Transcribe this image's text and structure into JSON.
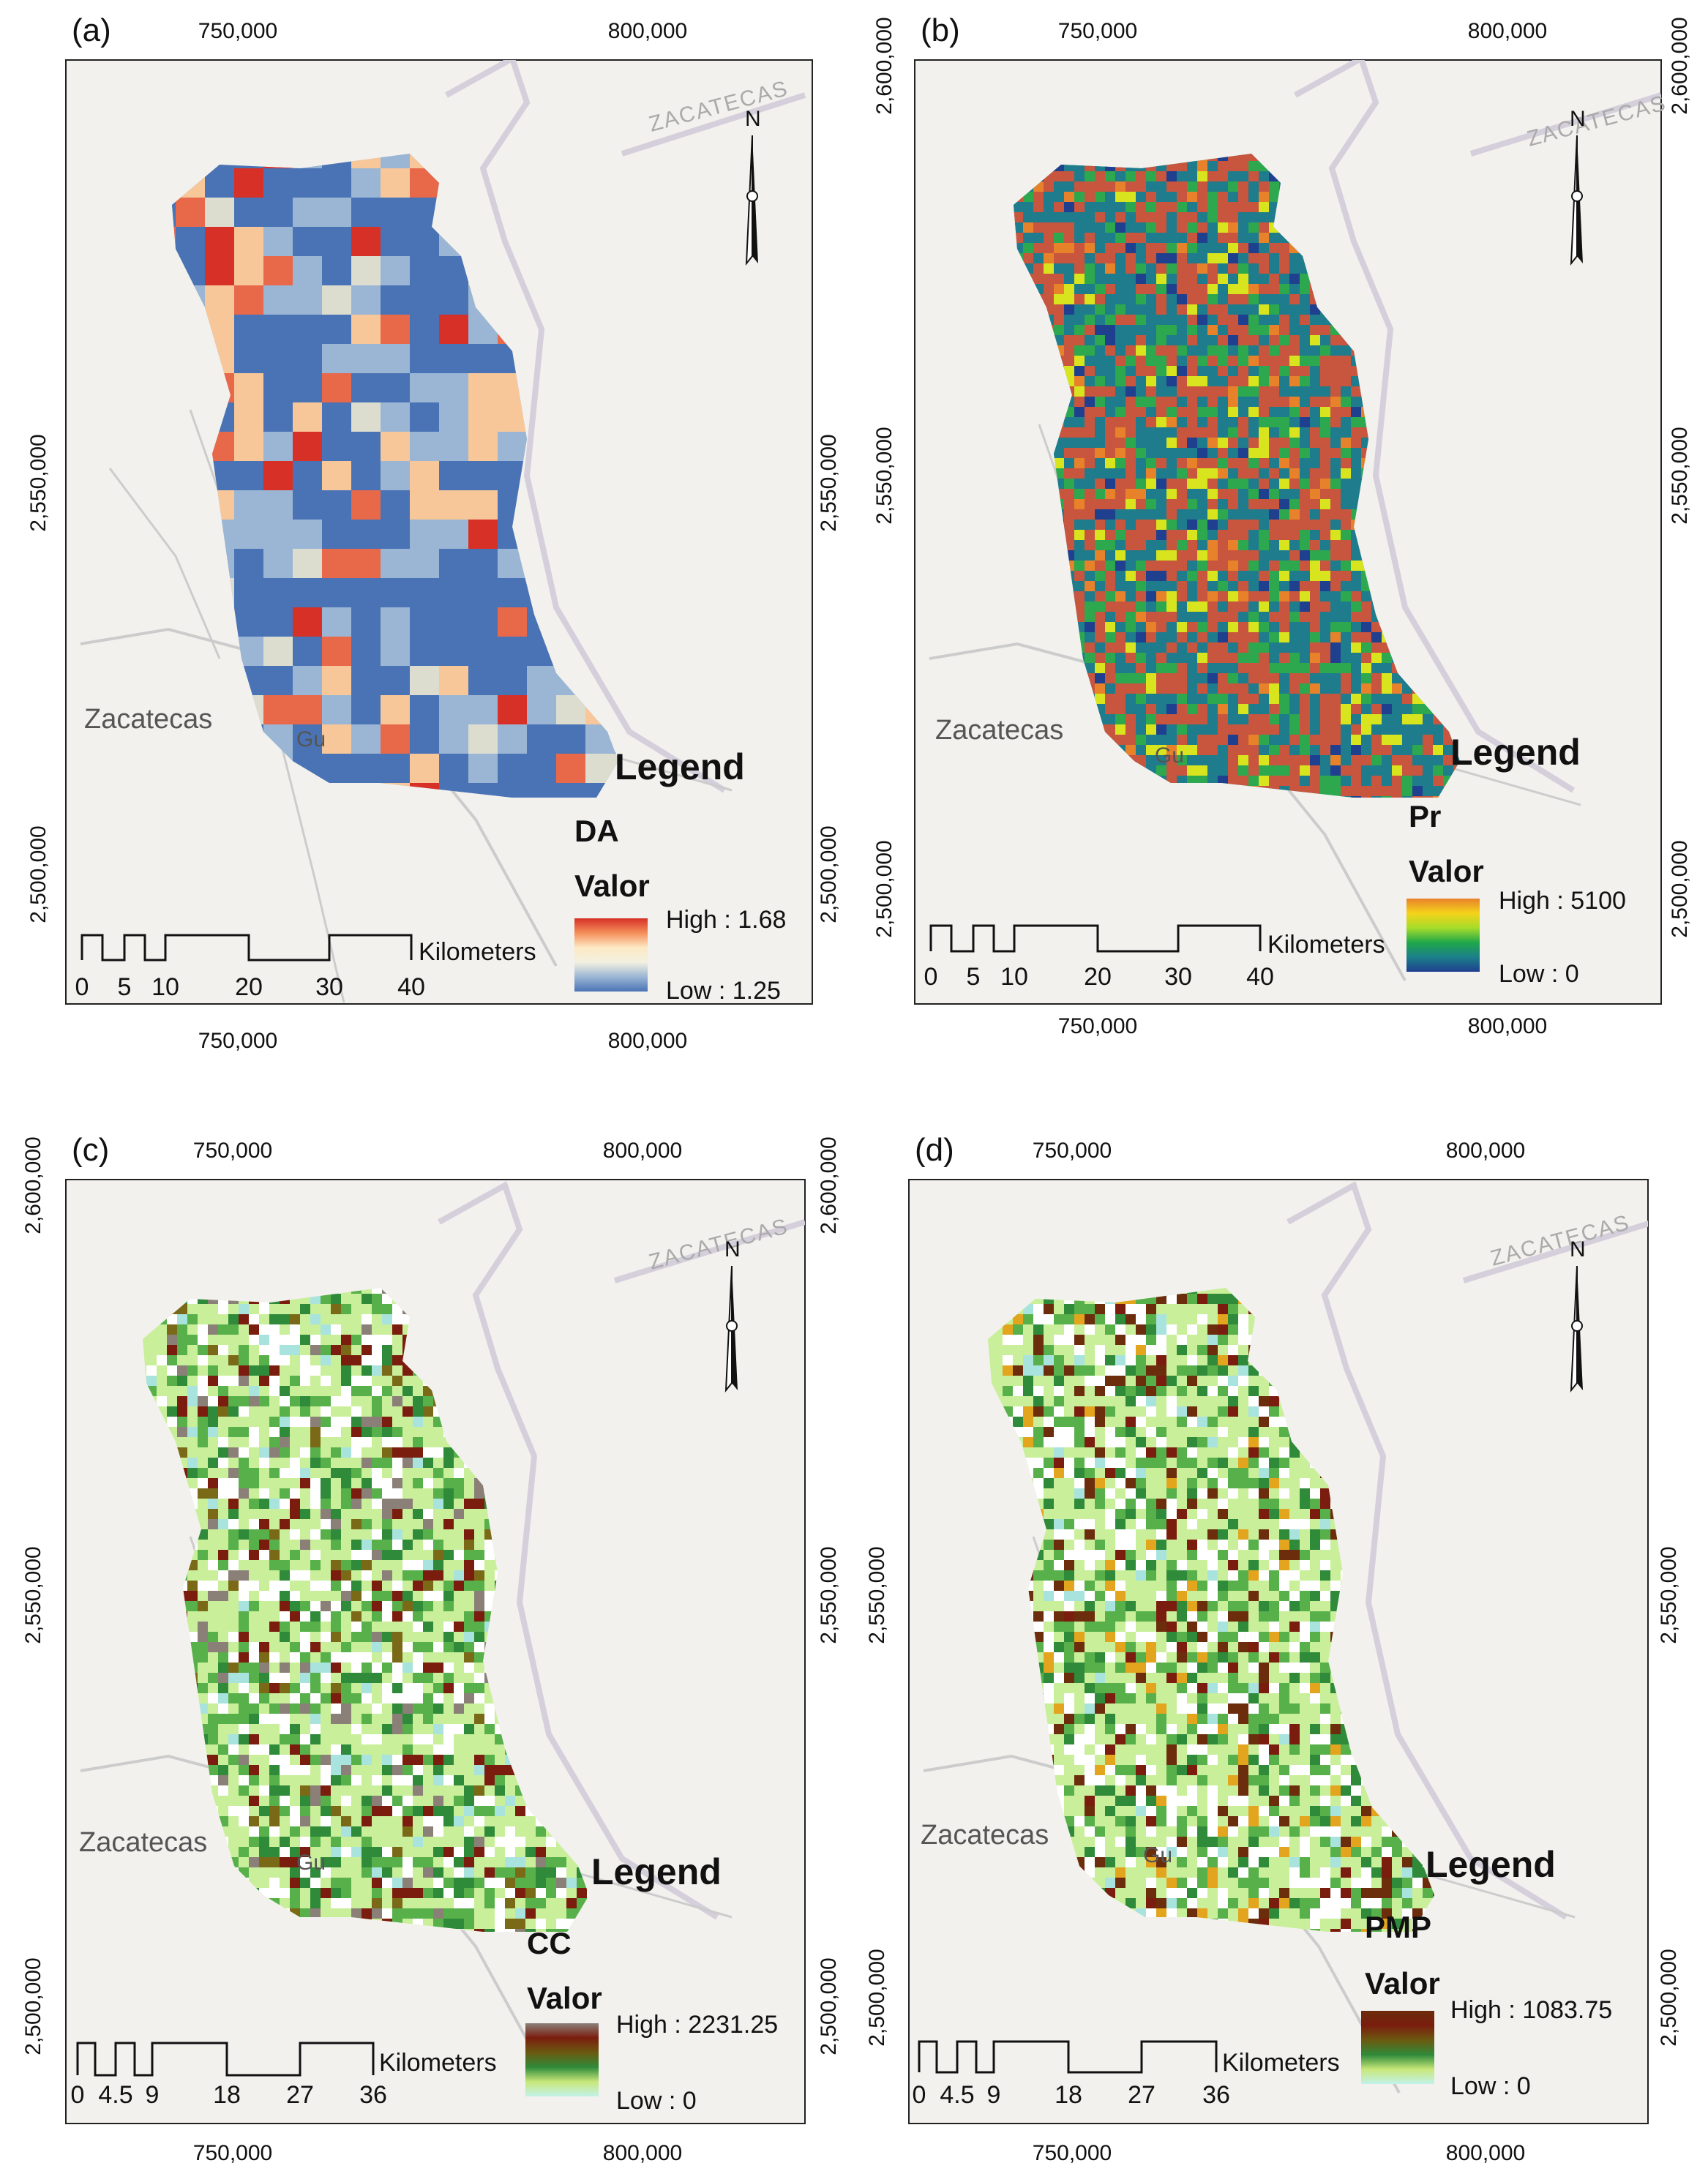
{
  "panels": [
    {
      "label": "(a)",
      "top_ticks": [
        "750,000",
        "800,000"
      ],
      "bottom_ticks": [
        "750,000",
        "800,000"
      ],
      "left_ticks": [
        "2,550,000",
        "2,500,000"
      ],
      "right_ticks": [
        "2,550,000",
        "2,500,000"
      ],
      "legend_title": "Legend",
      "variable": "DA",
      "valor": "Valor",
      "high": "High : 1.68",
      "low": "Low : 1.25",
      "scale_unit": "Kilometers",
      "scale_labels": [
        "0",
        "5",
        "10",
        "20",
        "30",
        "40"
      ],
      "town": "Zacatecas",
      "town2": "Gu",
      "state_label": "ZACATECAS",
      "north": "N",
      "map_type": "categorical",
      "ramp_colors": [
        "#d73027",
        "#f58f5a",
        "#fde9c4",
        "#f2f0e0",
        "#9bb6d4",
        "#4a73b5"
      ]
    },
    {
      "label": "(b)",
      "top_ticks": [
        "750,000",
        "800,000"
      ],
      "bottom_ticks": [
        "750,000",
        "800,000"
      ],
      "left_ticks": [
        "2,600,000",
        "2,550,000",
        "2,500,000"
      ],
      "right_ticks": [
        "2,600,000",
        "2,550,000",
        "2,500,000"
      ],
      "legend_title": "Legend",
      "variable": "Pr",
      "valor": "Valor",
      "high": "High : 5100",
      "low": "Low : 0",
      "scale_unit": "Kilometers",
      "scale_labels": [
        "0",
        "5",
        "10",
        "20",
        "30",
        "40"
      ],
      "town": "Zacatecas",
      "town2": "Gu",
      "state_label": "ZACATECAS",
      "north": "N",
      "map_type": "pr",
      "ramp_colors": [
        "#e8822a",
        "#f5d31a",
        "#a6dc2a",
        "#1fa84a",
        "#1b7f8a",
        "#1f3f8f"
      ]
    },
    {
      "label": "(c)",
      "top_ticks": [
        "750,000",
        "800,000"
      ],
      "bottom_ticks": [
        "750,000",
        "800,000"
      ],
      "left_ticks": [
        "2,600,000",
        "2,550,000",
        "2,500,000"
      ],
      "right_ticks": [
        "2,600,000",
        "2,550,000",
        "2,500,000"
      ],
      "legend_title": "Legend",
      "variable": "CC",
      "valor": "Valor",
      "high": "High : 2231.25",
      "low": "Low : 0",
      "scale_unit": "Kilometers",
      "scale_labels": [
        "0",
        "4.5",
        "9",
        "18",
        "27",
        "36"
      ],
      "town": "Zacatecas",
      "town2": "Gu",
      "state_label": "ZACATECAS",
      "north": "N",
      "map_type": "cc",
      "ramp_colors": [
        "#8b8078",
        "#7a1d0e",
        "#6b5a10",
        "#2f8a3a",
        "#c8e77a",
        "#c2f2ea"
      ]
    },
    {
      "label": "(d)",
      "top_ticks": [
        "750,000",
        "800,000"
      ],
      "bottom_ticks": [
        "750,000",
        "800,000"
      ],
      "left_ticks": [
        "2,550,000",
        "2,500,000"
      ],
      "right_ticks": [
        "2,550,000",
        "2,500,000"
      ],
      "legend_title": "Legend",
      "variable": "PMP",
      "valor": "Valor",
      "high": "High : 1083.75",
      "low": "Low : 0",
      "scale_unit": "Kilometers",
      "scale_labels": [
        "0",
        "4.5",
        "9",
        "18",
        "27",
        "36"
      ],
      "town": "Zacatecas",
      "town2": "Gu",
      "state_label": "ZACATECAS",
      "north": "N",
      "map_type": "pmp",
      "ramp_colors": [
        "#6b2d0c",
        "#7a1d0e",
        "#6b5a10",
        "#2f8a3a",
        "#c8e77a",
        "#c2f2ea"
      ]
    }
  ]
}
